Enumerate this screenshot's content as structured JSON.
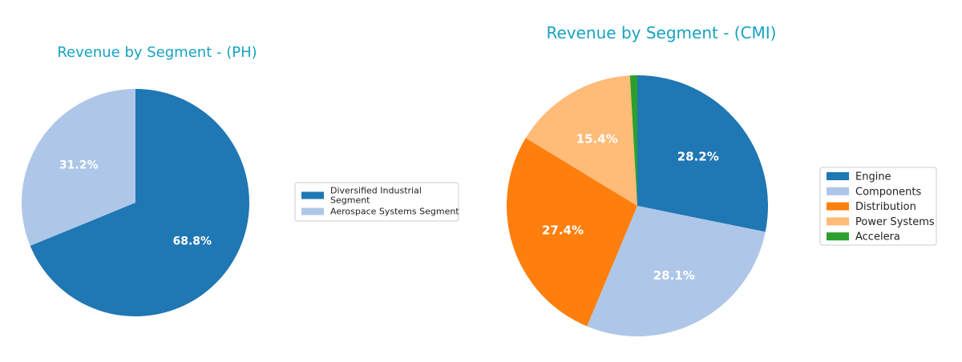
{
  "chart_data": [
    {
      "type": "pie",
      "title": "Revenue by Segment - (PH)",
      "legend_position": "right",
      "slices": [
        {
          "name": "Diversified Industrial Segment",
          "legend_lines": [
            "Diversified Industrial",
            "Segment"
          ],
          "value": 68.8,
          "label": "68.8%",
          "color": "#1f77b4"
        },
        {
          "name": "Aerospace Systems Segment",
          "legend_lines": [
            "Aerospace Systems Segment"
          ],
          "value": 31.2,
          "label": "31.2%",
          "color": "#aec7e8"
        }
      ]
    },
    {
      "type": "pie",
      "title": "Revenue by Segment - (CMI)",
      "legend_position": "right",
      "slices": [
        {
          "name": "Engine",
          "legend_lines": [
            "Engine"
          ],
          "value": 28.2,
          "label": "28.2%",
          "color": "#1f77b4"
        },
        {
          "name": "Components",
          "legend_lines": [
            "Components"
          ],
          "value": 28.1,
          "label": "28.1%",
          "color": "#aec7e8"
        },
        {
          "name": "Distribution",
          "legend_lines": [
            "Distribution"
          ],
          "value": 27.4,
          "label": "27.4%",
          "color": "#ff7f0e"
        },
        {
          "name": "Power Systems",
          "legend_lines": [
            "Power Systems"
          ],
          "value": 15.4,
          "label": "15.4%",
          "color": "#ffbb78"
        },
        {
          "name": "Accelera",
          "legend_lines": [
            "Accelera"
          ],
          "value": 0.9,
          "label": "",
          "color": "#2ca02c"
        }
      ]
    }
  ]
}
